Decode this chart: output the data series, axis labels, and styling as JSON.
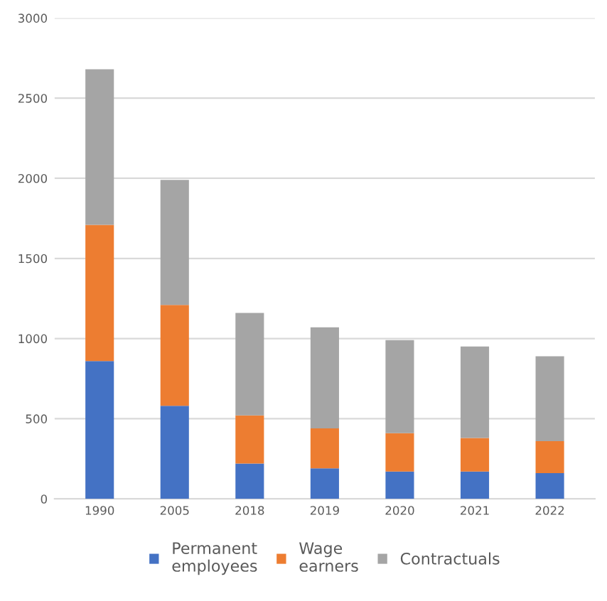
{
  "chart_data": {
    "type": "bar",
    "stacked": true,
    "categories": [
      "1990",
      "2005",
      "2018",
      "2019",
      "2020",
      "2021",
      "2022"
    ],
    "series": [
      {
        "name": "Permanent\nemployees",
        "color": "#4472c4",
        "values": [
          860,
          580,
          220,
          190,
          170,
          170,
          160
        ]
      },
      {
        "name": "Wage\nearners",
        "color": "#ed7d31",
        "values": [
          850,
          630,
          300,
          250,
          240,
          210,
          200
        ]
      },
      {
        "name": "Contractuals",
        "color": "#a5a5a5",
        "values": [
          970,
          780,
          640,
          630,
          580,
          570,
          530
        ]
      }
    ],
    "ylim": [
      0,
      3000
    ],
    "yticks": [
      0,
      500,
      1000,
      1500,
      2000,
      2500,
      3000
    ],
    "grid": "y",
    "legend": "bottom"
  }
}
